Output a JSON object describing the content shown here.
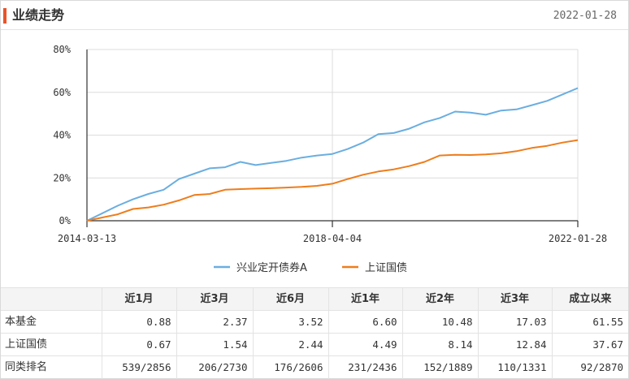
{
  "header": {
    "title": "业绩走势",
    "date": "2022-01-28"
  },
  "colors": {
    "accent": "#e8542a",
    "fund_line": "#6aaee0",
    "index_line": "#ee7d1c",
    "grid": "#dcdcdc",
    "axis": "#333333"
  },
  "chart_data": {
    "type": "line",
    "title": "",
    "xlabel": "",
    "ylabel": "",
    "x_ticks": [
      "2014-03-13",
      "2018-04-04",
      "2022-01-28"
    ],
    "y_ticks": [
      "0%",
      "20%",
      "40%",
      "60%",
      "80%"
    ],
    "ylim": [
      0,
      80
    ],
    "y_unit": "%",
    "grid": true,
    "legend_position": "bottom",
    "x": [
      "2014-03-13",
      "2014-06",
      "2014-09",
      "2014-12",
      "2015-03",
      "2015-06",
      "2015-09",
      "2015-12",
      "2016-03",
      "2016-06",
      "2016-09",
      "2016-12",
      "2017-03",
      "2017-06",
      "2017-09",
      "2017-12",
      "2018-04-04",
      "2018-06",
      "2018-09",
      "2018-12",
      "2019-03",
      "2019-06",
      "2019-09",
      "2019-12",
      "2020-03",
      "2020-06",
      "2020-09",
      "2020-12",
      "2021-03",
      "2021-06",
      "2021-09",
      "2021-12",
      "2022-01-28"
    ],
    "series": [
      {
        "name": "兴业定开债券A",
        "color": "#6aaee0",
        "values": [
          0,
          3.5,
          7,
          10,
          12.5,
          14.5,
          19.5,
          22,
          24.5,
          25,
          27.5,
          26,
          27,
          28,
          29.5,
          30.5,
          31.2,
          33.5,
          36.5,
          40.5,
          41,
          43,
          46,
          48,
          51,
          50.5,
          49.5,
          51.5,
          52,
          54,
          56,
          59,
          62
        ]
      },
      {
        "name": "上证国债",
        "color": "#ee7d1c",
        "values": [
          0,
          1.5,
          3,
          5.5,
          6.2,
          7.5,
          9.5,
          12,
          12.5,
          14.5,
          14.8,
          15,
          15.2,
          15.5,
          15.8,
          16.3,
          17.3,
          19.5,
          21.5,
          23,
          24,
          25.5,
          27.5,
          30.5,
          30.8,
          30.7,
          31,
          31.5,
          32.5,
          34,
          35,
          36.5,
          37.7
        ]
      }
    ]
  },
  "table": {
    "headers": [
      "",
      "近1月",
      "近3月",
      "近6月",
      "近1年",
      "近2年",
      "近3年",
      "成立以来"
    ],
    "rows": [
      {
        "label": "本基金",
        "cells": [
          "0.88",
          "2.37",
          "3.52",
          "6.60",
          "10.48",
          "17.03",
          "61.55"
        ]
      },
      {
        "label": "上证国债",
        "cells": [
          "0.67",
          "1.54",
          "2.44",
          "4.49",
          "8.14",
          "12.84",
          "37.67"
        ]
      },
      {
        "label": "同类排名",
        "cells": [
          "539/2856",
          "206/2730",
          "176/2606",
          "231/2436",
          "152/1889",
          "110/1331",
          "92/2870"
        ]
      }
    ]
  }
}
